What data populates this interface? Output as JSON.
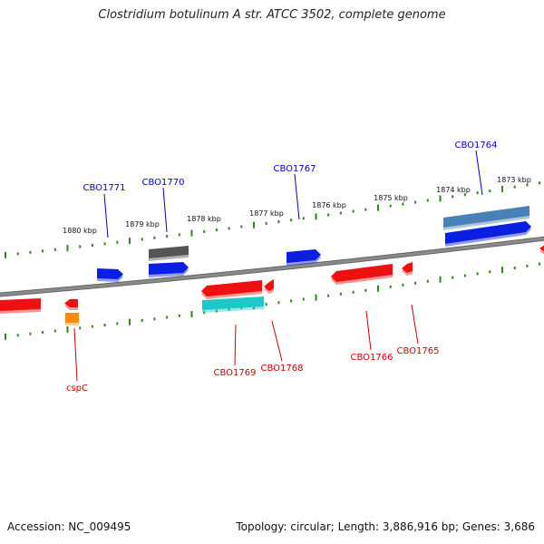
{
  "header": {
    "title": "Clostridium botulinum A str. ATCC 3502, complete genome"
  },
  "footer": {
    "accession": "Accession: NC_009495",
    "summary": "Topology: circular; Length: 3,886,916 bp; Genes: 3,686"
  },
  "ruler": {
    "ticks": [
      "1880 kbp",
      "1879 kbp",
      "1878 kbp",
      "1877 kbp",
      "1876 kbp",
      "1875 kbp",
      "1874 kbp",
      "1873 kbp"
    ]
  },
  "genes": {
    "forward": [
      "CBO1771",
      "CBO1770",
      "CBO1767",
      "CBO1764"
    ],
    "reverse": [
      "cspC",
      "CBO1769",
      "CBO1768",
      "CBO1766",
      "CBO1765"
    ]
  },
  "colors": {
    "forward_label": "#0000cc",
    "reverse_label": "#cc0000",
    "tick": "#2a8a1a",
    "backbone": "#8a8a8a",
    "blue": "#0a1fe0",
    "steelblue": "#4a80b8",
    "gray": "#555555",
    "red": "#ee1111",
    "cyan": "#1fc8c8",
    "orange": "#ff8c00"
  }
}
